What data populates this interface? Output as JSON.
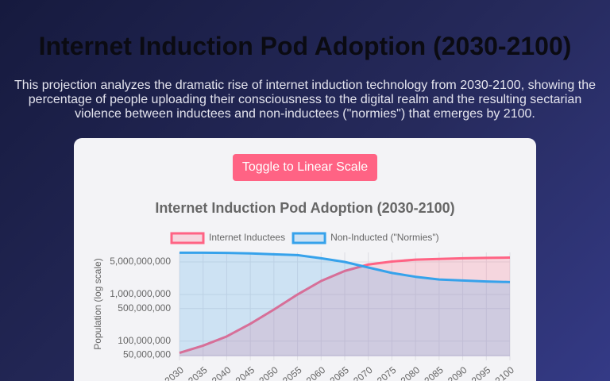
{
  "page": {
    "title": "Internet Induction Pod Adoption (2030-2100)",
    "description": "This projection analyzes the dramatic rise of internet induction technology from 2030-2100, showing the percentage of people uploading their consciousness to the digital realm and the resulting sectarian violence between inductees and non-inductees (\"normies\") that emerges by 2100.",
    "button": "Toggle to Linear Scale"
  },
  "chart_data": {
    "type": "line",
    "title": "Internet Induction Pod Adoption (2030-2100)",
    "y_label": "Population (log scale)",
    "y_scale": "log",
    "grid": true,
    "fill": true,
    "legend": "top",
    "x": [
      2030,
      2035,
      2040,
      2045,
      2050,
      2055,
      2060,
      2065,
      2070,
      2075,
      2080,
      2085,
      2090,
      2095,
      2100
    ],
    "series": [
      {
        "name": "Internet Inductees",
        "color": "#ff6384",
        "values": [
          56000000,
          80000000,
          126000000,
          235000000,
          475000000,
          1000000000,
          1950000000,
          3200000000,
          4400000000,
          5100000000,
          5600000000,
          5800000000,
          6000000000,
          6100000000,
          6200000000
        ]
      },
      {
        "name": "Non-Inducted (\"Normies\")",
        "color": "#36a2eb",
        "values": [
          7900000000,
          7900000000,
          7800000000,
          7600000000,
          7300000000,
          7000000000,
          6000000000,
          5000000000,
          3800000000,
          2900000000,
          2400000000,
          2100000000,
          2000000000,
          1900000000,
          1850000000
        ]
      }
    ],
    "xlim": [
      2030,
      2100
    ],
    "xticks": [
      2030,
      2035,
      2040,
      2045,
      2050,
      2055,
      2060,
      2065,
      2070,
      2075,
      2080,
      2085,
      2090,
      2095,
      2100
    ],
    "ylim": [
      47000000,
      8000000000
    ],
    "yticks": [
      {
        "value": 50000000,
        "label": "50,000,000"
      },
      {
        "value": 100000000,
        "label": "100,000,000"
      },
      {
        "value": 500000000,
        "label": "500,000,000"
      },
      {
        "value": 1000000000,
        "label": "1,000,000,000"
      },
      {
        "value": 5000000000,
        "label": "5,000,000,000"
      }
    ]
  }
}
